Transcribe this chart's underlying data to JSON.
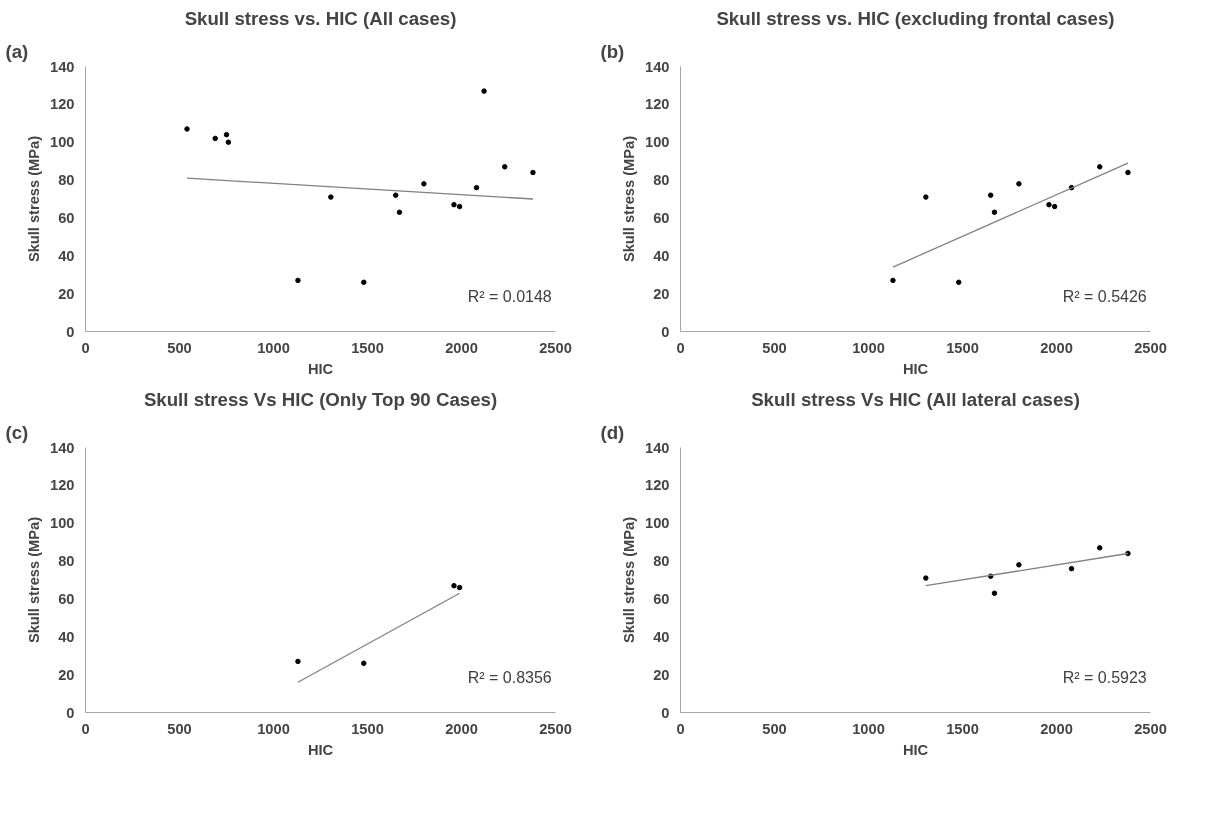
{
  "chart_data": [
    {
      "type": "scatter",
      "title": "Skull stress vs. HIC (All cases)",
      "xlabel": "HIC",
      "ylabel": "Skull stress (MPa)",
      "annotations": [
        "(a)",
        "R² = 0.0148"
      ],
      "xlim": [
        0,
        2500
      ],
      "ylim": [
        0,
        140
      ],
      "xticks": [
        0,
        500,
        1000,
        1500,
        2000,
        2500
      ],
      "yticks": [
        0,
        20,
        40,
        60,
        80,
        100,
        120,
        140
      ],
      "grid": false,
      "series": [
        {
          "marker": "circle",
          "color": "#000000",
          "x": [
            540,
            690,
            750,
            760,
            1130,
            1305,
            1480,
            1650,
            1670,
            1800,
            1960,
            1990,
            2080,
            2120,
            2230,
            2380
          ],
          "values": [
            107,
            102,
            104,
            100,
            27,
            71,
            26,
            72,
            63,
            78,
            67,
            66,
            76,
            127,
            87,
            84
          ]
        },
        {
          "type": "line",
          "color": "#808080",
          "x": [
            540,
            2380
          ],
          "values": [
            81,
            70
          ]
        }
      ]
    },
    {
      "type": "scatter",
      "title": "Skull stress vs. HIC (excluding frontal cases)",
      "xlabel": "HIC",
      "ylabel": "Skull stress (MPa)",
      "annotations": [
        "(b)",
        "R² = 0.5426"
      ],
      "xlim": [
        0,
        2500
      ],
      "ylim": [
        0,
        140
      ],
      "xticks": [
        0,
        500,
        1000,
        1500,
        2000,
        2500
      ],
      "yticks": [
        0,
        20,
        40,
        60,
        80,
        100,
        120,
        140
      ],
      "grid": false,
      "series": [
        {
          "marker": "circle",
          "color": "#000000",
          "x": [
            1130,
            1305,
            1480,
            1650,
            1670,
            1800,
            1960,
            1990,
            2080,
            2230,
            2380
          ],
          "values": [
            27,
            71,
            26,
            72,
            63,
            78,
            67,
            66,
            76,
            87,
            84
          ]
        },
        {
          "type": "line",
          "color": "#808080",
          "x": [
            1130,
            2380
          ],
          "values": [
            34,
            89
          ]
        }
      ]
    },
    {
      "type": "scatter",
      "title": "Skull stress Vs HIC (Only Top 90 Cases)",
      "xlabel": "HIC",
      "ylabel": "Skull stress (MPa)",
      "annotations": [
        "(c)",
        "R² = 0.8356"
      ],
      "xlim": [
        0,
        2500
      ],
      "ylim": [
        0,
        140
      ],
      "xticks": [
        0,
        500,
        1000,
        1500,
        2000,
        2500
      ],
      "yticks": [
        0,
        20,
        40,
        60,
        80,
        100,
        120,
        140
      ],
      "grid": false,
      "series": [
        {
          "marker": "circle",
          "color": "#000000",
          "x": [
            1130,
            1480,
            1960,
            1990
          ],
          "values": [
            27,
            26,
            67,
            66
          ]
        },
        {
          "type": "line",
          "color": "#808080",
          "x": [
            1130,
            1990
          ],
          "values": [
            16,
            63
          ]
        }
      ]
    },
    {
      "type": "scatter",
      "title": "Skull stress Vs HIC (All lateral cases)",
      "xlabel": "HIC",
      "ylabel": "Skull stress (MPa)",
      "annotations": [
        "(d)",
        "R² = 0.5923"
      ],
      "xlim": [
        0,
        2500
      ],
      "ylim": [
        0,
        140
      ],
      "xticks": [
        0,
        500,
        1000,
        1500,
        2000,
        2500
      ],
      "yticks": [
        0,
        20,
        40,
        60,
        80,
        100,
        120,
        140
      ],
      "grid": false,
      "series": [
        {
          "marker": "circle",
          "color": "#000000",
          "x": [
            1305,
            1650,
            1670,
            1800,
            2080,
            2230,
            2380
          ],
          "values": [
            71,
            72,
            63,
            78,
            76,
            87,
            84
          ]
        },
        {
          "type": "line",
          "color": "#808080",
          "x": [
            1305,
            2380
          ],
          "values": [
            67,
            84
          ]
        }
      ]
    }
  ]
}
